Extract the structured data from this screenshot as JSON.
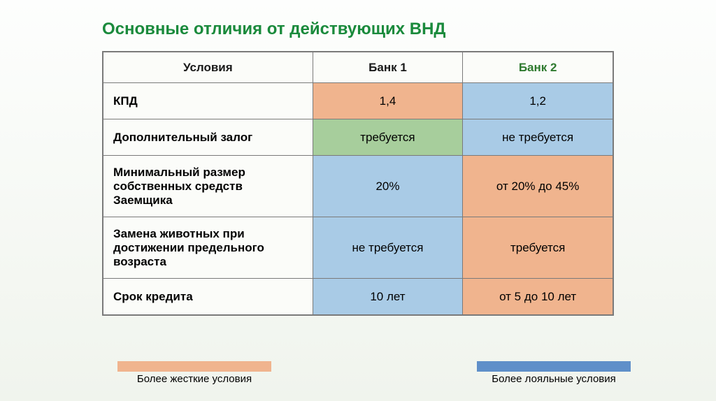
{
  "title": {
    "text": "Основные отличия от действующих ВНД",
    "color": "#1a8a3c",
    "fontsize": 24
  },
  "colors": {
    "strict": "#f0b48e",
    "lenient": "#a9cbe6",
    "green": "#a7ce9c",
    "th_bank2": "#8eb56c",
    "label_fg": "#1a1a1a"
  },
  "table": {
    "columns": [
      "Условия",
      "Банк 1",
      "Банк 2"
    ],
    "header_styles": [
      {
        "bg": "#fbfcf9",
        "fg": "#1a1a1a"
      },
      {
        "bg": "#fbfcf9",
        "fg": "#1a1a1a"
      },
      {
        "bg": "#fbfcf9",
        "fg": "#2f7a2f"
      }
    ],
    "rows": [
      {
        "label": "КПД",
        "height": 52,
        "bank1": {
          "text": "1,4",
          "bg": "#f0b48e"
        },
        "bank2": {
          "text": "1,2",
          "bg": "#a9cbe6"
        }
      },
      {
        "label": "Дополнительный залог",
        "height": 52,
        "bank1": {
          "text": "требуется",
          "bg": "#a7ce9c"
        },
        "bank2": {
          "text": "не требуется",
          "bg": "#a9cbe6"
        }
      },
      {
        "label": "Минимальный размер собственных средств Заемщика",
        "height": 88,
        "bank1": {
          "text": "20%",
          "bg": "#a9cbe6"
        },
        "bank2": {
          "text": "от 20% до 45%",
          "bg": "#f0b48e"
        }
      },
      {
        "label": "Замена животных при достижении предельного возраста",
        "height": 88,
        "bank1": {
          "text": "не требуется",
          "bg": "#a9cbe6"
        },
        "bank2": {
          "text": "требуется",
          "bg": "#f0b48e"
        }
      },
      {
        "label": "Срок кредита",
        "height": 52,
        "bank1": {
          "text": "10 лет",
          "bg": "#a9cbe6"
        },
        "bank2": {
          "text": "от 5 до 10 лет",
          "bg": "#f0b48e"
        }
      }
    ]
  },
  "legend": {
    "strict": {
      "label": "Более жесткие условия",
      "swatch": "#f0b48e"
    },
    "lenient": {
      "label": "Более лояльные условия",
      "swatch": "#5f8fc9"
    }
  }
}
